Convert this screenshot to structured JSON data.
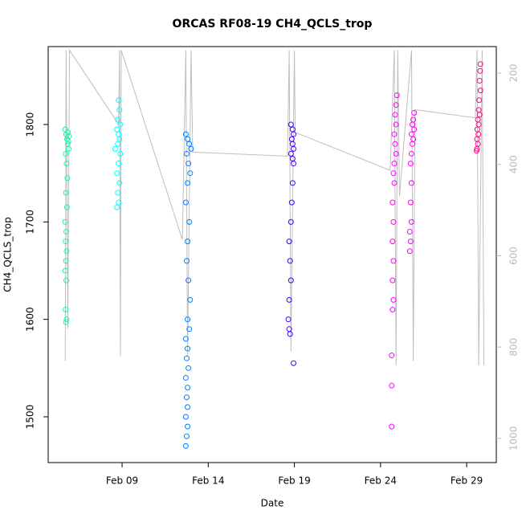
{
  "chart_data": {
    "type": "scatter",
    "title": "ORCAS RF08-19 CH4_QCLS_trop",
    "xlabel": "Date",
    "ylabel": "CH4_QCLS_trop",
    "xlim": [
      4.71,
      30.72
    ],
    "xticks": [
      {
        "value": 9,
        "label": "Feb 09"
      },
      {
        "value": 14,
        "label": "Feb 14"
      },
      {
        "value": 19,
        "label": "Feb 19"
      },
      {
        "value": 24,
        "label": "Feb 24"
      },
      {
        "value": 29,
        "label": "Feb 29"
      }
    ],
    "ylim": [
      1453,
      1880
    ],
    "yticks": [
      1500,
      1600,
      1700,
      1800
    ],
    "y2lim": [
      1053,
      142
    ],
    "y2ticks": [
      200,
      400,
      600,
      800,
      1000
    ],
    "series": [
      {
        "type": "line",
        "axis": "y2",
        "color": "#bebebe",
        "x": [
          5.7,
          5.75,
          5.85,
          5.95,
          8.8,
          8.85,
          8.9,
          8.95,
          12.5,
          12.7,
          12.8,
          13.0,
          13.1,
          18.6,
          18.7,
          18.8,
          19.0,
          19.05,
          24.56,
          24.8,
          24.9,
          25.0,
          25.1,
          25.8,
          25.9,
          26.0,
          29.5,
          29.6,
          29.7,
          29.9,
          30.0
        ],
        "values": [
          830,
          150,
          760,
          150,
          312,
          150,
          820,
          150,
          565,
          150,
          820,
          150,
          373,
          382,
          150,
          810,
          150,
          330,
          413,
          150,
          840,
          150,
          470,
          150,
          830,
          280,
          298,
          150,
          840,
          150,
          840
        ]
      },
      {
        "color": "#1cf5a8",
        "x": [
          5.7,
          5.75,
          5.8,
          5.85,
          5.9,
          5.72,
          5.78,
          5.82,
          5.74,
          5.8,
          5.7,
          5.76,
          5.72,
          5.78,
          5.74,
          5.7,
          5.76,
          5.72,
          5.78,
          5.74,
          5.88,
          5.92,
          5.86
        ],
        "values": [
          1795,
          1790,
          1785,
          1780,
          1775,
          1770,
          1760,
          1745,
          1730,
          1715,
          1700,
          1690,
          1680,
          1670,
          1660,
          1650,
          1640,
          1610,
          1600,
          1597,
          1783,
          1788,
          1792
        ]
      },
      {
        "color": "#00ffff",
        "x": [
          8.8,
          8.85,
          8.75,
          8.9,
          8.7,
          8.8,
          8.85,
          8.75,
          8.6,
          8.9,
          8.8,
          8.7,
          8.85,
          8.75,
          8.8,
          8.7
        ],
        "values": [
          1825,
          1815,
          1805,
          1800,
          1795,
          1790,
          1785,
          1780,
          1775,
          1770,
          1760,
          1750,
          1740,
          1730,
          1720,
          1715
        ]
      },
      {
        "color": "#0080ff",
        "x": [
          12.7,
          12.8,
          12.9,
          13.0,
          12.75,
          12.85,
          12.95,
          12.8,
          12.7,
          12.9,
          12.8,
          12.75,
          12.85,
          12.95,
          12.8,
          12.9,
          12.7,
          12.8,
          12.75,
          12.85,
          12.7,
          12.8,
          12.75,
          12.8,
          12.7,
          12.8,
          12.75,
          12.7
        ],
        "values": [
          1790,
          1785,
          1780,
          1775,
          1770,
          1760,
          1750,
          1740,
          1720,
          1700,
          1680,
          1660,
          1640,
          1620,
          1600,
          1590,
          1580,
          1570,
          1560,
          1550,
          1540,
          1530,
          1520,
          1510,
          1500,
          1490,
          1480,
          1470
        ]
      },
      {
        "color": "#4000ff",
        "x": [
          18.8,
          18.9,
          18.95,
          18.85,
          18.9,
          18.95,
          18.8,
          18.9,
          18.95,
          18.9,
          18.85,
          18.8,
          18.7,
          18.75,
          18.8,
          18.7,
          18.65,
          18.7,
          18.75,
          18.95
        ],
        "values": [
          1800,
          1795,
          1790,
          1785,
          1780,
          1775,
          1770,
          1765,
          1760,
          1740,
          1720,
          1700,
          1680,
          1660,
          1640,
          1620,
          1600,
          1590,
          1585,
          1555
        ]
      },
      {
        "color": "#ff00ff",
        "x": [
          24.95,
          24.9,
          24.85,
          24.9,
          24.8,
          24.85,
          24.9,
          24.8,
          24.75,
          24.8,
          24.7,
          24.75,
          24.7,
          24.75,
          24.7,
          24.75,
          24.7,
          24.65,
          24.65,
          24.65
        ],
        "values": [
          1830,
          1820,
          1810,
          1800,
          1790,
          1780,
          1770,
          1760,
          1750,
          1740,
          1720,
          1700,
          1680,
          1660,
          1640,
          1620,
          1610,
          1563,
          1532,
          1490
        ]
      },
      {
        "color": "#ff00ff",
        "x": [
          25.95,
          25.9,
          25.85,
          25.95,
          25.8,
          25.9,
          25.85,
          25.8,
          25.75,
          25.8,
          25.75,
          25.8,
          25.7,
          25.75,
          25.7
        ],
        "values": [
          1812,
          1805,
          1800,
          1795,
          1790,
          1785,
          1780,
          1770,
          1760,
          1740,
          1720,
          1700,
          1690,
          1680,
          1670
        ]
      },
      {
        "color": "#ff0080",
        "x": [
          29.8,
          29.78,
          29.75,
          29.8,
          29.72,
          29.7,
          29.75,
          29.65,
          29.7,
          29.62,
          29.68,
          29.6,
          29.65,
          29.6,
          29.58
        ],
        "values": [
          1862,
          1855,
          1845,
          1835,
          1825,
          1815,
          1810,
          1805,
          1800,
          1795,
          1790,
          1785,
          1780,
          1775,
          1773
        ]
      }
    ]
  }
}
